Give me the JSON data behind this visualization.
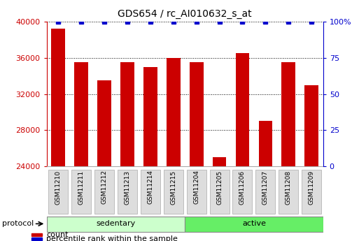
{
  "title": "GDS654 / rc_AI010632_s_at",
  "samples": [
    "GSM11210",
    "GSM11211",
    "GSM11212",
    "GSM11213",
    "GSM11214",
    "GSM11215",
    "GSM11204",
    "GSM11205",
    "GSM11206",
    "GSM11207",
    "GSM11208",
    "GSM11209"
  ],
  "counts": [
    39200,
    35500,
    33500,
    35500,
    35000,
    36000,
    35500,
    25000,
    36500,
    29000,
    35500,
    33000
  ],
  "percentile_ranks": [
    100,
    100,
    100,
    100,
    100,
    100,
    100,
    100,
    100,
    100,
    100,
    100
  ],
  "bar_color": "#cc0000",
  "percentile_color": "#0000cc",
  "groups": [
    {
      "label": "sedentary",
      "start": 0,
      "end": 6,
      "color": "#ccffcc"
    },
    {
      "label": "active",
      "start": 6,
      "end": 12,
      "color": "#66ee66"
    }
  ],
  "protocol_label": "protocol",
  "ylim_left": [
    24000,
    40000
  ],
  "ylim_right": [
    0,
    100
  ],
  "yticks_left": [
    24000,
    28000,
    32000,
    36000,
    40000
  ],
  "yticks_right": [
    0,
    25,
    50,
    75,
    100
  ],
  "legend_count_label": "count",
  "legend_percentile_label": "percentile rank within the sample",
  "title_fontsize": 10,
  "axis_color_left": "#cc0000",
  "axis_color_right": "#0000cc",
  "grid_color": "#000000",
  "background_color": "#ffffff",
  "bar_width": 0.6,
  "tick_box_color": "#dddddd",
  "tick_box_edge": "#aaaaaa"
}
